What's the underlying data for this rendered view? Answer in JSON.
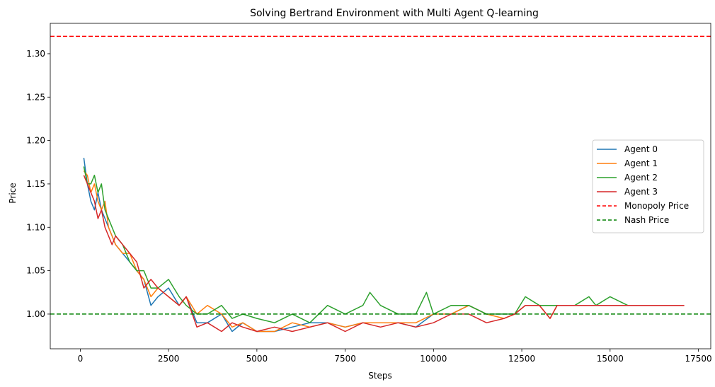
{
  "chart_data": {
    "type": "line",
    "title": "Solving Bertrand Environment with Multi Agent Q-learning",
    "xlabel": "Steps",
    "ylabel": "Price",
    "xlim": [
      -850,
      17850
    ],
    "ylim": [
      0.96,
      1.335
    ],
    "xticks": [
      0,
      2500,
      5000,
      7500,
      10000,
      12500,
      15000,
      17500
    ],
    "yticks": [
      1.0,
      1.05,
      1.1,
      1.15,
      1.2,
      1.25,
      1.3
    ],
    "xtick_labels": [
      "0",
      "2500",
      "5000",
      "7500",
      "10000",
      "12500",
      "15000",
      "17500"
    ],
    "ytick_labels": [
      "1.00",
      "1.05",
      "1.10",
      "1.15",
      "1.20",
      "1.25",
      "1.30"
    ],
    "grid": false,
    "legend_position": "center-right",
    "series": [
      {
        "name": "Agent 0",
        "color": "#1f77b4",
        "style": "solid",
        "x": [
          100,
          200,
          300,
          400,
          500,
          600,
          700,
          800,
          900,
          1000,
          1200,
          1400,
          1600,
          1800,
          2000,
          2200,
          2500,
          2800,
          3000,
          3300,
          3600,
          4000,
          4300,
          4600,
          5000,
          5500,
          6000,
          6500,
          7000,
          7500,
          8000,
          8500,
          9000,
          9500,
          10000,
          10500,
          11000,
          11500,
          12000,
          12300,
          12600,
          13000,
          13500,
          14000,
          14500,
          15000,
          15500,
          16000,
          16300
        ],
        "y": [
          1.18,
          1.15,
          1.13,
          1.12,
          1.14,
          1.12,
          1.11,
          1.1,
          1.09,
          1.08,
          1.07,
          1.06,
          1.05,
          1.04,
          1.01,
          1.02,
          1.03,
          1.01,
          1.02,
          0.99,
          0.99,
          1.0,
          0.98,
          0.99,
          0.98,
          0.98,
          0.985,
          0.99,
          0.99,
          0.985,
          0.99,
          0.99,
          0.99,
          0.985,
          1.0,
          1.0,
          1.01,
          1.0,
          1.0,
          1.0,
          1.01,
          1.01,
          1.01,
          1.01,
          1.01,
          1.01,
          1.01,
          1.01,
          1.01
        ]
      },
      {
        "name": "Agent 1",
        "color": "#ff7f0e",
        "style": "solid",
        "x": [
          100,
          200,
          300,
          400,
          500,
          600,
          700,
          800,
          900,
          1000,
          1200,
          1400,
          1600,
          1800,
          2000,
          2200,
          2500,
          2800,
          3000,
          3300,
          3600,
          4000,
          4300,
          4600,
          5000,
          5500,
          6000,
          6500,
          7000,
          7500,
          8000,
          8500,
          9000,
          9500,
          10000,
          10500,
          11000,
          11500,
          12000,
          12300,
          12600,
          13000,
          13300,
          13500,
          14000,
          14500,
          15000,
          15500,
          16000,
          16300
        ],
        "y": [
          1.165,
          1.16,
          1.14,
          1.15,
          1.13,
          1.12,
          1.13,
          1.1,
          1.09,
          1.08,
          1.07,
          1.07,
          1.05,
          1.04,
          1.02,
          1.03,
          1.02,
          1.01,
          1.02,
          1.0,
          1.01,
          1.0,
          0.985,
          0.99,
          0.98,
          0.98,
          0.99,
          0.985,
          0.99,
          0.985,
          0.99,
          0.99,
          0.99,
          0.99,
          1.0,
          1.0,
          1.01,
          1.0,
          0.995,
          1.0,
          1.01,
          1.01,
          0.995,
          1.01,
          1.01,
          1.01,
          1.01,
          1.01,
          1.01,
          1.01
        ]
      },
      {
        "name": "Agent 2",
        "color": "#2ca02c",
        "style": "solid",
        "x": [
          100,
          200,
          300,
          400,
          500,
          600,
          700,
          800,
          900,
          1000,
          1200,
          1400,
          1600,
          1800,
          2000,
          2200,
          2500,
          2800,
          3000,
          3300,
          3600,
          4000,
          4300,
          4600,
          5000,
          5500,
          6000,
          6500,
          7000,
          7500,
          8000,
          8200,
          8500,
          9000,
          9500,
          9800,
          10000,
          10500,
          11000,
          11500,
          12000,
          12300,
          12600,
          13000,
          13500,
          14000,
          14400,
          14600,
          15000,
          15500,
          16000,
          16300
        ],
        "y": [
          1.17,
          1.15,
          1.15,
          1.16,
          1.14,
          1.15,
          1.12,
          1.11,
          1.1,
          1.09,
          1.08,
          1.06,
          1.05,
          1.05,
          1.03,
          1.03,
          1.04,
          1.02,
          1.01,
          1.0,
          1.0,
          1.01,
          0.995,
          1.0,
          0.995,
          0.99,
          1.0,
          0.99,
          1.01,
          1.0,
          1.01,
          1.025,
          1.01,
          1.0,
          1.0,
          1.025,
          1.0,
          1.01,
          1.01,
          1.0,
          1.0,
          1.0,
          1.02,
          1.01,
          1.01,
          1.01,
          1.02,
          1.01,
          1.02,
          1.01,
          1.01,
          1.01
        ]
      },
      {
        "name": "Agent 3",
        "color": "#d62728",
        "style": "solid",
        "x": [
          100,
          200,
          300,
          400,
          500,
          600,
          700,
          800,
          900,
          1000,
          1200,
          1400,
          1600,
          1800,
          2000,
          2200,
          2500,
          2800,
          3000,
          3300,
          3600,
          4000,
          4300,
          4600,
          5000,
          5500,
          6000,
          6500,
          7000,
          7500,
          8000,
          8500,
          9000,
          9500,
          10000,
          10500,
          11000,
          11500,
          12000,
          12300,
          12600,
          13000,
          13300,
          13500,
          14000,
          14500,
          15000,
          15500,
          16000,
          16500,
          17000,
          17100
        ],
        "y": [
          1.16,
          1.15,
          1.14,
          1.13,
          1.11,
          1.12,
          1.1,
          1.09,
          1.08,
          1.09,
          1.08,
          1.07,
          1.06,
          1.03,
          1.04,
          1.03,
          1.02,
          1.01,
          1.02,
          0.985,
          0.99,
          0.98,
          0.99,
          0.985,
          0.98,
          0.985,
          0.98,
          0.985,
          0.99,
          0.98,
          0.99,
          0.985,
          0.99,
          0.985,
          0.99,
          1.0,
          1.0,
          0.99,
          0.995,
          1.0,
          1.01,
          1.01,
          0.995,
          1.01,
          1.01,
          1.01,
          1.01,
          1.01,
          1.01,
          1.01,
          1.01,
          1.01
        ]
      }
    ],
    "reference_lines": [
      {
        "name": "Monopoly Price",
        "color": "#ff0000",
        "style": "dashed",
        "y": 1.32
      },
      {
        "name": "Nash Price",
        "color": "#008000",
        "style": "dashed",
        "y": 1.0
      }
    ],
    "legend": [
      "Agent 0",
      "Agent 1",
      "Agent 2",
      "Agent 3",
      "Monopoly Price",
      "Nash Price"
    ]
  }
}
